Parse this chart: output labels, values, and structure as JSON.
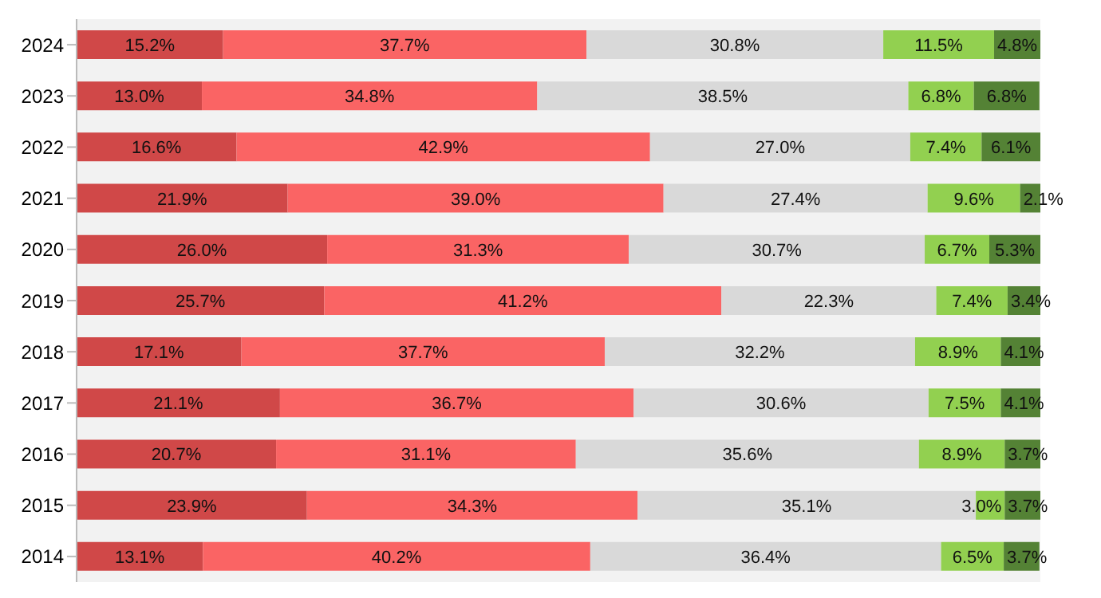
{
  "chart_data": {
    "type": "bar",
    "orientation": "horizontal",
    "stacked": true,
    "categories": [
      "2024",
      "2023",
      "2022",
      "2021",
      "2020",
      "2019",
      "2018",
      "2017",
      "2016",
      "2015",
      "2014"
    ],
    "xlim": [
      0,
      100
    ],
    "tick_labels": "y",
    "grid": false,
    "legend": false,
    "series": [
      {
        "color": "#d04848",
        "values": [
          15.2,
          13.0,
          16.6,
          21.9,
          26.0,
          25.7,
          17.1,
          21.1,
          20.7,
          23.9,
          13.1
        ],
        "value_labels": [
          "15.2%",
          "13.0%",
          "16.6%",
          "21.9%",
          "26.0%",
          "25.7%",
          "17.1%",
          "21.1%",
          "20.7%",
          "23.9%",
          "13.1%"
        ]
      },
      {
        "color": "#fa6464",
        "values": [
          37.7,
          34.8,
          42.9,
          39.0,
          31.3,
          41.2,
          37.7,
          36.7,
          31.1,
          34.3,
          40.2
        ],
        "value_labels": [
          "37.7%",
          "34.8%",
          "42.9%",
          "39.0%",
          "31.3%",
          "41.2%",
          "37.7%",
          "36.7%",
          "31.1%",
          "34.3%",
          "40.2%"
        ]
      },
      {
        "color": "#d9d9d9",
        "values": [
          30.8,
          38.5,
          27.0,
          27.4,
          30.7,
          22.3,
          32.2,
          30.6,
          35.6,
          35.1,
          36.4
        ],
        "value_labels": [
          "30.8%",
          "38.5%",
          "27.0%",
          "27.4%",
          "30.7%",
          "22.3%",
          "32.2%",
          "30.6%",
          "35.6%",
          "35.1%",
          "36.4%"
        ]
      },
      {
        "color": "#92d050",
        "values": [
          11.5,
          6.8,
          7.4,
          9.6,
          6.7,
          7.4,
          8.9,
          7.5,
          8.9,
          3.0,
          6.5
        ],
        "value_labels": [
          "11.5%",
          "6.8%",
          "7.4%",
          "9.6%",
          "6.7%",
          "7.4%",
          "8.9%",
          "7.5%",
          "8.9%",
          "3.0%",
          "6.5%"
        ]
      },
      {
        "color": "#548235",
        "values": [
          4.8,
          6.8,
          6.1,
          2.1,
          5.3,
          3.4,
          4.1,
          4.1,
          3.7,
          3.7,
          3.7
        ],
        "value_labels": [
          "4.8%",
          "6.8%",
          "6.1%",
          "2.1%",
          "5.3%",
          "3.4%",
          "4.1%",
          "4.1%",
          "3.7%",
          "3.7%",
          "3.7%"
        ]
      }
    ]
  }
}
